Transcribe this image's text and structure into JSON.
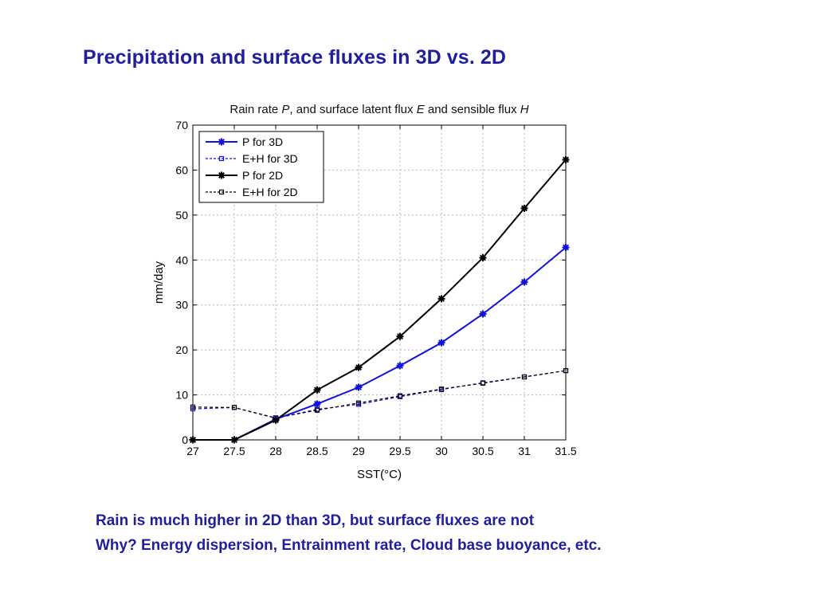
{
  "slide": {
    "title": "Precipitation and surface fluxes in 3D vs. 2D",
    "notes": [
      "Rain is much higher in 2D than 3D, but surface fluxes are not",
      "Why? Energy dispersion, Entrainment rate, Cloud base buoyance, etc."
    ],
    "title_color": "#1f1f9e"
  },
  "chart_data": {
    "type": "line",
    "title_parts": [
      {
        "text": "Rain rate ",
        "italic": false
      },
      {
        "text": "P",
        "italic": true
      },
      {
        "text": ", and surface latent flux ",
        "italic": false
      },
      {
        "text": "E",
        "italic": true
      },
      {
        "text": " and sensible flux ",
        "italic": false
      },
      {
        "text": "H",
        "italic": true
      }
    ],
    "xlabel": "SST(°C)",
    "ylabel": "mm/day",
    "x": [
      27,
      27.5,
      28,
      28.5,
      29,
      29.5,
      30,
      30.5,
      31,
      31.5
    ],
    "x_tick_labels": [
      "27",
      "27.5",
      "28",
      "28.5",
      "29",
      "29.5",
      "30",
      "30.5",
      "31",
      "31.5"
    ],
    "y_ticks": [
      0,
      10,
      20,
      30,
      40,
      50,
      60,
      70
    ],
    "xlim": [
      27,
      31.5
    ],
    "ylim": [
      0,
      70
    ],
    "grid": true,
    "legend_position": "top-left",
    "series": [
      {
        "name": "P for 3D",
        "color": "#1010e0",
        "dashed": false,
        "marker": "asterisk",
        "values": [
          0,
          0,
          4.6,
          8.0,
          11.7,
          16.5,
          21.6,
          28.0,
          35.1,
          42.8
        ]
      },
      {
        "name": "E+H for 3D",
        "color": "#1010e0",
        "dashed": true,
        "marker": "square",
        "values": [
          6.9,
          7.2,
          4.8,
          6.8,
          7.9,
          9.6,
          11.2,
          12.7,
          14.0,
          15.4
        ]
      },
      {
        "name": "P for 2D",
        "color": "#000000",
        "dashed": false,
        "marker": "asterisk",
        "values": [
          0,
          0,
          4.4,
          11.1,
          16.1,
          23.0,
          31.4,
          40.5,
          51.5,
          62.3
        ]
      },
      {
        "name": "E+H for 2D",
        "color": "#000000",
        "dashed": true,
        "marker": "square",
        "values": [
          7.3,
          7.2,
          4.9,
          6.6,
          8.2,
          9.8,
          11.3,
          12.6,
          14.0,
          15.4
        ]
      }
    ]
  }
}
